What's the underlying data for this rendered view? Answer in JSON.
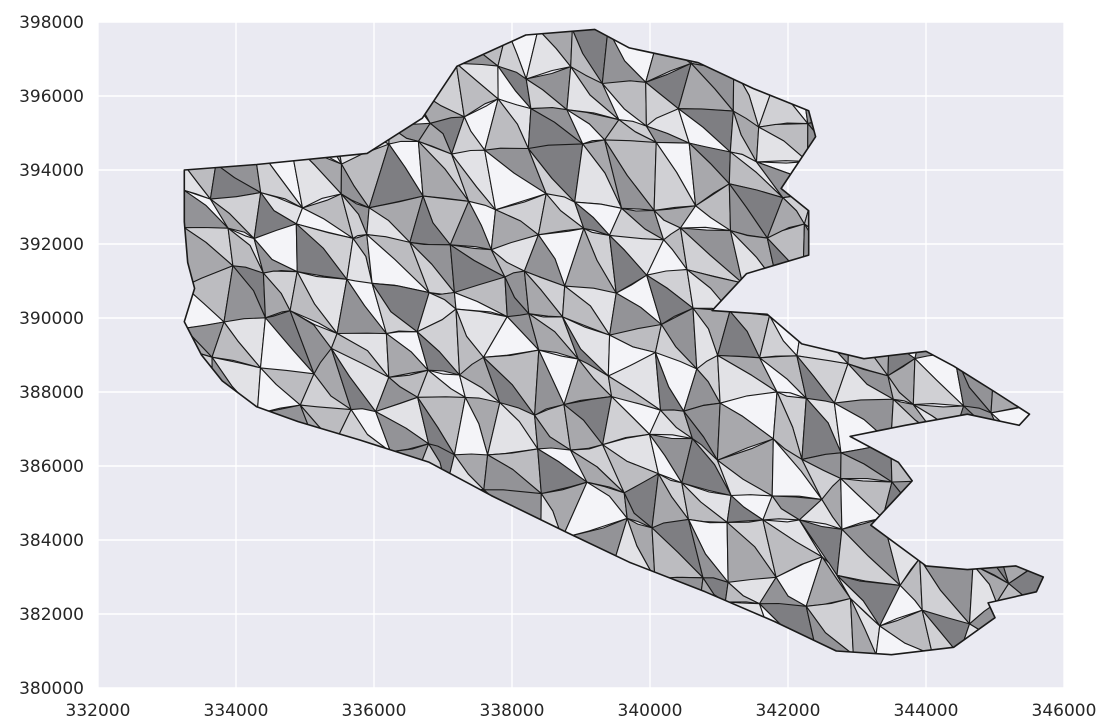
{
  "chart_data": {
    "type": "choropleth",
    "xlim": [
      332000,
      346000
    ],
    "ylim": [
      380000,
      398000
    ],
    "x_ticks": [
      332000,
      334000,
      336000,
      338000,
      340000,
      342000,
      344000,
      346000
    ],
    "y_ticks": [
      380000,
      382000,
      384000,
      386000,
      388000,
      390000,
      392000,
      394000,
      396000,
      398000
    ],
    "x_tick_labels": [
      "332000",
      "334000",
      "336000",
      "338000",
      "340000",
      "342000",
      "344000",
      "346000"
    ],
    "y_tick_labels": [
      "380000",
      "382000",
      "384000",
      "386000",
      "388000",
      "390000",
      "392000",
      "394000",
      "396000",
      "398000"
    ],
    "grid": true,
    "colors": {
      "axes_background": "#eaeaf2",
      "grid": "#ffffff",
      "boundary": "#1a1a1a",
      "fill_shades": [
        "#f4f4f8",
        "#e2e2e6",
        "#d0d0d4",
        "#bcbcc0",
        "#a8a8ac",
        "#939397",
        "#7e7e82"
      ]
    },
    "outline": [
      [
        333250,
        394000
      ],
      [
        334300,
        394150
      ],
      [
        335900,
        394450
      ],
      [
        336700,
        395400
      ],
      [
        337200,
        396800
      ],
      [
        338200,
        397650
      ],
      [
        339200,
        397800
      ],
      [
        339700,
        397300
      ],
      [
        340700,
        396900
      ],
      [
        341500,
        396200
      ],
      [
        342300,
        395600
      ],
      [
        342400,
        394900
      ],
      [
        341900,
        393500
      ],
      [
        342300,
        392900
      ],
      [
        342300,
        391700
      ],
      [
        341400,
        391200
      ],
      [
        340900,
        390200
      ],
      [
        341700,
        390100
      ],
      [
        342200,
        389300
      ],
      [
        343100,
        388900
      ],
      [
        344000,
        389100
      ],
      [
        344400,
        388700
      ],
      [
        345000,
        388000
      ],
      [
        345500,
        387400
      ],
      [
        345350,
        387100
      ],
      [
        344600,
        387400
      ],
      [
        343700,
        387100
      ],
      [
        342900,
        386800
      ],
      [
        343600,
        386100
      ],
      [
        343800,
        385600
      ],
      [
        343200,
        384400
      ],
      [
        344000,
        383300
      ],
      [
        344600,
        383200
      ],
      [
        345300,
        383300
      ],
      [
        345700,
        383000
      ],
      [
        345600,
        382600
      ],
      [
        344900,
        382300
      ],
      [
        345000,
        381900
      ],
      [
        344400,
        381100
      ],
      [
        343500,
        380900
      ],
      [
        342700,
        381000
      ],
      [
        341800,
        381800
      ],
      [
        340800,
        382600
      ],
      [
        339700,
        383400
      ],
      [
        338800,
        384200
      ],
      [
        337700,
        385200
      ],
      [
        336800,
        386100
      ],
      [
        335800,
        386700
      ],
      [
        334900,
        387200
      ],
      [
        334300,
        387600
      ],
      [
        333800,
        388300
      ],
      [
        333500,
        389000
      ],
      [
        333250,
        389900
      ],
      [
        333400,
        390800
      ],
      [
        333300,
        391500
      ],
      [
        333250,
        392600
      ]
    ],
    "region_shades": [
      4,
      1,
      3,
      6,
      0,
      2,
      5,
      1,
      3,
      0,
      4,
      2,
      6,
      1,
      3,
      5,
      0,
      2,
      4,
      1,
      6,
      3,
      0,
      5,
      2,
      4,
      1,
      3,
      6,
      0,
      2,
      5,
      1,
      4,
      3,
      0,
      6,
      2,
      5,
      1,
      3,
      4,
      0,
      2,
      6,
      1,
      5,
      3,
      0,
      4,
      2,
      1,
      6,
      3,
      5,
      0,
      2,
      4,
      1,
      3,
      6,
      0,
      5,
      2,
      4,
      1,
      3,
      0,
      6,
      2,
      5,
      4,
      1,
      3,
      0,
      2,
      6,
      5,
      1,
      4,
      3,
      0,
      2,
      5,
      6,
      1,
      4,
      3,
      0,
      2,
      1,
      5,
      6,
      3,
      4,
      0,
      2,
      1,
      5,
      3,
      6,
      4,
      0,
      2,
      1,
      3,
      5,
      6,
      4,
      0,
      2,
      3,
      1,
      5,
      6,
      0,
      4,
      2,
      3,
      1,
      6,
      5,
      0,
      4,
      2,
      3,
      1,
      5,
      6,
      0,
      2,
      4,
      3,
      1,
      5,
      6,
      0,
      2,
      4,
      1,
      3,
      5,
      0,
      6,
      2,
      4,
      1,
      3,
      5,
      0,
      6,
      2,
      4,
      1,
      3,
      5,
      0,
      2,
      6,
      4,
      1,
      3,
      0,
      5,
      2,
      6,
      4,
      1,
      3,
      0,
      5,
      2,
      4,
      6,
      1,
      3,
      0,
      5,
      2,
      4,
      1,
      6,
      3,
      0,
      5,
      2,
      4,
      1,
      3,
      6,
      0,
      5,
      2,
      4,
      1,
      3,
      0,
      6,
      5,
      2,
      4,
      1,
      3,
      0,
      6,
      5,
      2,
      4,
      1,
      3,
      0,
      5,
      6,
      2,
      4,
      1,
      3,
      0,
      5,
      6,
      2,
      4,
      1,
      3,
      0,
      5,
      2,
      6,
      4,
      1,
      3,
      0,
      5,
      2,
      4,
      6,
      1,
      3,
      0,
      5,
      2,
      4,
      1,
      6,
      3,
      0,
      5,
      2,
      4,
      1,
      3,
      6,
      0,
      5,
      2,
      4,
      1,
      3,
      0,
      6,
      5,
      2,
      4,
      1,
      3,
      0,
      6,
      5,
      2,
      4,
      1,
      3,
      0,
      5,
      6,
      2,
      4,
      1,
      3,
      0,
      5,
      6,
      2,
      4,
      1,
      3,
      0,
      5,
      2,
      6,
      4,
      1,
      3,
      0,
      5,
      2,
      4,
      6,
      1,
      3,
      0,
      5,
      2,
      4,
      1,
      6,
      3,
      0,
      5
    ]
  }
}
